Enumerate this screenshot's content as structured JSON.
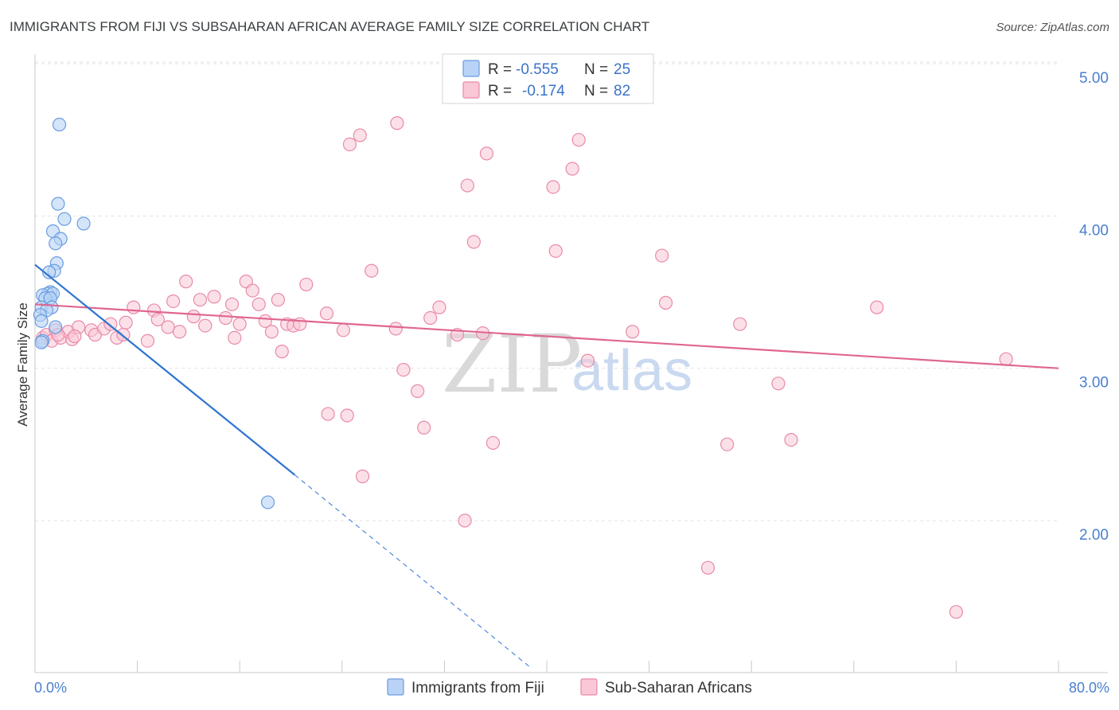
{
  "header": {
    "title": "IMMIGRANTS FROM FIJI VS SUBSAHARAN AFRICAN AVERAGE FAMILY SIZE CORRELATION CHART",
    "source": "Source: ZipAtlas.com"
  },
  "watermark": {
    "zip": "ZIP",
    "atlas": "atlas"
  },
  "colors": {
    "fiji_fill": "#b8d3f5",
    "fiji_stroke": "#6a9be0",
    "fiji_line": "#2f74d0",
    "ssa_fill": "#f9c7d6",
    "ssa_stroke": "#e88aa8",
    "ssa_line": "#e06690",
    "grid": "#e3e3e3",
    "axis_text": "#4a7fd0"
  },
  "legend": {
    "rows": [
      {
        "r_label": "R = ",
        "r_value": "-0.555",
        "n_label": "N = ",
        "n_value": "25"
      },
      {
        "r_label": "R = ",
        "r_value": "-0.174",
        "n_label": "N = ",
        "n_value": "82"
      }
    ]
  },
  "chart_data": {
    "type": "scatter",
    "title": "IMMIGRANTS FROM FIJI VS SUBSAHARAN AFRICAN AVERAGE FAMILY SIZE CORRELATION CHART",
    "xlabel": "",
    "ylabel": "Average Family Size",
    "xlim": [
      0,
      80
    ],
    "ylim": [
      1.0,
      5.2
    ],
    "x_tick_labels": [
      "0.0%",
      "80.0%"
    ],
    "y_ticks": [
      2.0,
      3.0,
      4.0,
      5.0
    ],
    "y_tick_labels": [
      "2.00",
      "3.00",
      "4.00",
      "5.00"
    ],
    "grid": true,
    "legend_position": "top-center",
    "series": [
      {
        "name": "Immigrants from Fiji",
        "r": -0.555,
        "n": 25,
        "trend": {
          "x0": 0,
          "y0": 3.68,
          "x1": 20.3,
          "y1": 2.3,
          "dash_x1": 38.8,
          "dash_y1": 1.03
        },
        "points": [
          [
            1.9,
            4.6
          ],
          [
            1.8,
            4.08
          ],
          [
            2.3,
            3.98
          ],
          [
            3.8,
            3.95
          ],
          [
            1.4,
            3.9
          ],
          [
            2.0,
            3.85
          ],
          [
            1.6,
            3.82
          ],
          [
            1.7,
            3.69
          ],
          [
            1.5,
            3.64
          ],
          [
            1.1,
            3.63
          ],
          [
            1.2,
            3.5
          ],
          [
            1.0,
            3.49
          ],
          [
            1.4,
            3.49
          ],
          [
            0.6,
            3.48
          ],
          [
            0.8,
            3.46
          ],
          [
            1.2,
            3.46
          ],
          [
            0.5,
            3.4
          ],
          [
            1.3,
            3.4
          ],
          [
            0.9,
            3.38
          ],
          [
            0.4,
            3.35
          ],
          [
            0.5,
            3.31
          ],
          [
            1.6,
            3.27
          ],
          [
            0.6,
            3.18
          ],
          [
            0.5,
            3.17
          ],
          [
            18.2,
            2.12
          ]
        ]
      },
      {
        "name": "Sub-Saharan Africans",
        "r": -0.174,
        "n": 82,
        "trend": {
          "x0": 0,
          "y0": 3.42,
          "x1": 80,
          "y1": 3.0
        },
        "points": [
          [
            0.6,
            3.2
          ],
          [
            0.9,
            3.22
          ],
          [
            1.3,
            3.18
          ],
          [
            1.6,
            3.25
          ],
          [
            2.0,
            3.2
          ],
          [
            2.6,
            3.24
          ],
          [
            2.9,
            3.19
          ],
          [
            3.4,
            3.27
          ],
          [
            4.4,
            3.25
          ],
          [
            4.7,
            3.22
          ],
          [
            5.4,
            3.26
          ],
          [
            5.9,
            3.29
          ],
          [
            6.4,
            3.2
          ],
          [
            6.9,
            3.22
          ],
          [
            7.1,
            3.3
          ],
          [
            7.7,
            3.4
          ],
          [
            8.8,
            3.18
          ],
          [
            9.3,
            3.38
          ],
          [
            9.6,
            3.32
          ],
          [
            10.4,
            3.27
          ],
          [
            10.8,
            3.44
          ],
          [
            11.3,
            3.24
          ],
          [
            11.8,
            3.57
          ],
          [
            12.4,
            3.34
          ],
          [
            12.9,
            3.45
          ],
          [
            13.3,
            3.28
          ],
          [
            14.0,
            3.47
          ],
          [
            14.9,
            3.33
          ],
          [
            15.4,
            3.42
          ],
          [
            15.6,
            3.2
          ],
          [
            16.0,
            3.29
          ],
          [
            16.5,
            3.57
          ],
          [
            17.0,
            3.51
          ],
          [
            17.5,
            3.42
          ],
          [
            18.0,
            3.31
          ],
          [
            18.5,
            3.24
          ],
          [
            19.0,
            3.45
          ],
          [
            19.3,
            3.11
          ],
          [
            19.7,
            3.29
          ],
          [
            20.2,
            3.28
          ],
          [
            20.7,
            3.29
          ],
          [
            21.2,
            3.55
          ],
          [
            22.8,
            3.36
          ],
          [
            22.9,
            2.7
          ],
          [
            24.1,
            3.25
          ],
          [
            24.4,
            2.69
          ],
          [
            24.6,
            4.47
          ],
          [
            25.4,
            4.53
          ],
          [
            25.6,
            2.29
          ],
          [
            26.3,
            3.64
          ],
          [
            28.2,
            3.26
          ],
          [
            28.3,
            4.61
          ],
          [
            28.8,
            2.99
          ],
          [
            29.9,
            2.85
          ],
          [
            30.4,
            2.61
          ],
          [
            30.9,
            3.33
          ],
          [
            31.6,
            3.4
          ],
          [
            33.0,
            3.22
          ],
          [
            33.6,
            2.0
          ],
          [
            33.8,
            4.2
          ],
          [
            34.3,
            3.83
          ],
          [
            35.0,
            3.23
          ],
          [
            35.3,
            4.41
          ],
          [
            35.8,
            2.51
          ],
          [
            40.5,
            4.19
          ],
          [
            40.7,
            3.77
          ],
          [
            42.0,
            4.31
          ],
          [
            42.5,
            4.5
          ],
          [
            43.2,
            3.05
          ],
          [
            46.7,
            3.24
          ],
          [
            49.0,
            3.74
          ],
          [
            49.3,
            3.43
          ],
          [
            52.6,
            1.69
          ],
          [
            54.1,
            2.5
          ],
          [
            55.1,
            3.29
          ],
          [
            58.1,
            2.9
          ],
          [
            59.1,
            2.53
          ],
          [
            65.8,
            3.4
          ],
          [
            72.0,
            1.4
          ],
          [
            75.9,
            3.06
          ],
          [
            1.8,
            3.22
          ],
          [
            3.1,
            3.21
          ]
        ]
      }
    ]
  }
}
